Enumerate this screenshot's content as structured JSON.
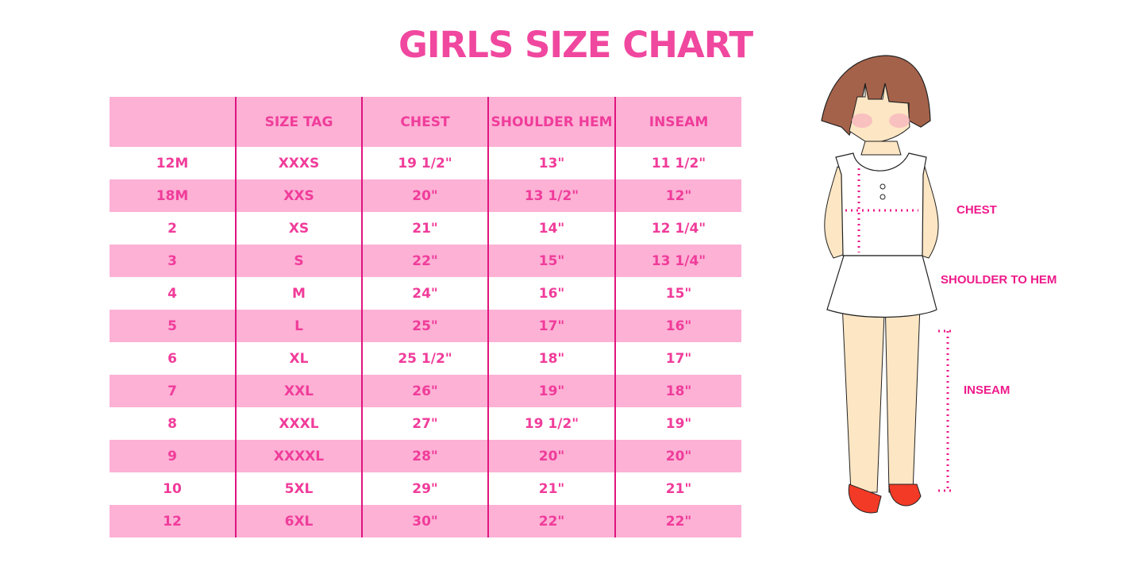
{
  "title": "GIRLS SIZE CHART",
  "table": {
    "headers": [
      "",
      "SIZE TAG",
      "CHEST",
      "SHOULDER HEM",
      "INSEAM"
    ],
    "rows": [
      [
        "12M",
        "XXXS",
        "19 1/2\"",
        "13\"",
        "11 1/2\""
      ],
      [
        "18M",
        "XXS",
        "20\"",
        "13 1/2\"",
        "12\""
      ],
      [
        "2",
        "XS",
        "21\"",
        "14\"",
        "12 1/4\""
      ],
      [
        "3",
        "S",
        "22\"",
        "15\"",
        "13 1/4\""
      ],
      [
        "4",
        "M",
        "24\"",
        "16\"",
        "15\""
      ],
      [
        "5",
        "L",
        "25\"",
        "17\"",
        "16\""
      ],
      [
        "6",
        "XL",
        "25 1/2\"",
        "18\"",
        "17\""
      ],
      [
        "7",
        "XXL",
        "26\"",
        "19\"",
        "18\""
      ],
      [
        "8",
        "XXXL",
        "27\"",
        "19 1/2\"",
        "19\""
      ],
      [
        "9",
        "XXXXL",
        "28\"",
        "20\"",
        "20\""
      ],
      [
        "10",
        "5XL",
        "29\"",
        "21\"",
        "21\""
      ],
      [
        "12",
        "6XL",
        "30\"",
        "22\"",
        "22\""
      ]
    ]
  },
  "illustration": {
    "labels": {
      "chest": "CHEST",
      "shoulder_to_hem": "SHOULDER TO HEM",
      "inseam": "INSEAM"
    }
  },
  "colors": {
    "accent": "#f03c9a",
    "row_pink": "#fcb1d5",
    "divider": "#e0147f"
  }
}
